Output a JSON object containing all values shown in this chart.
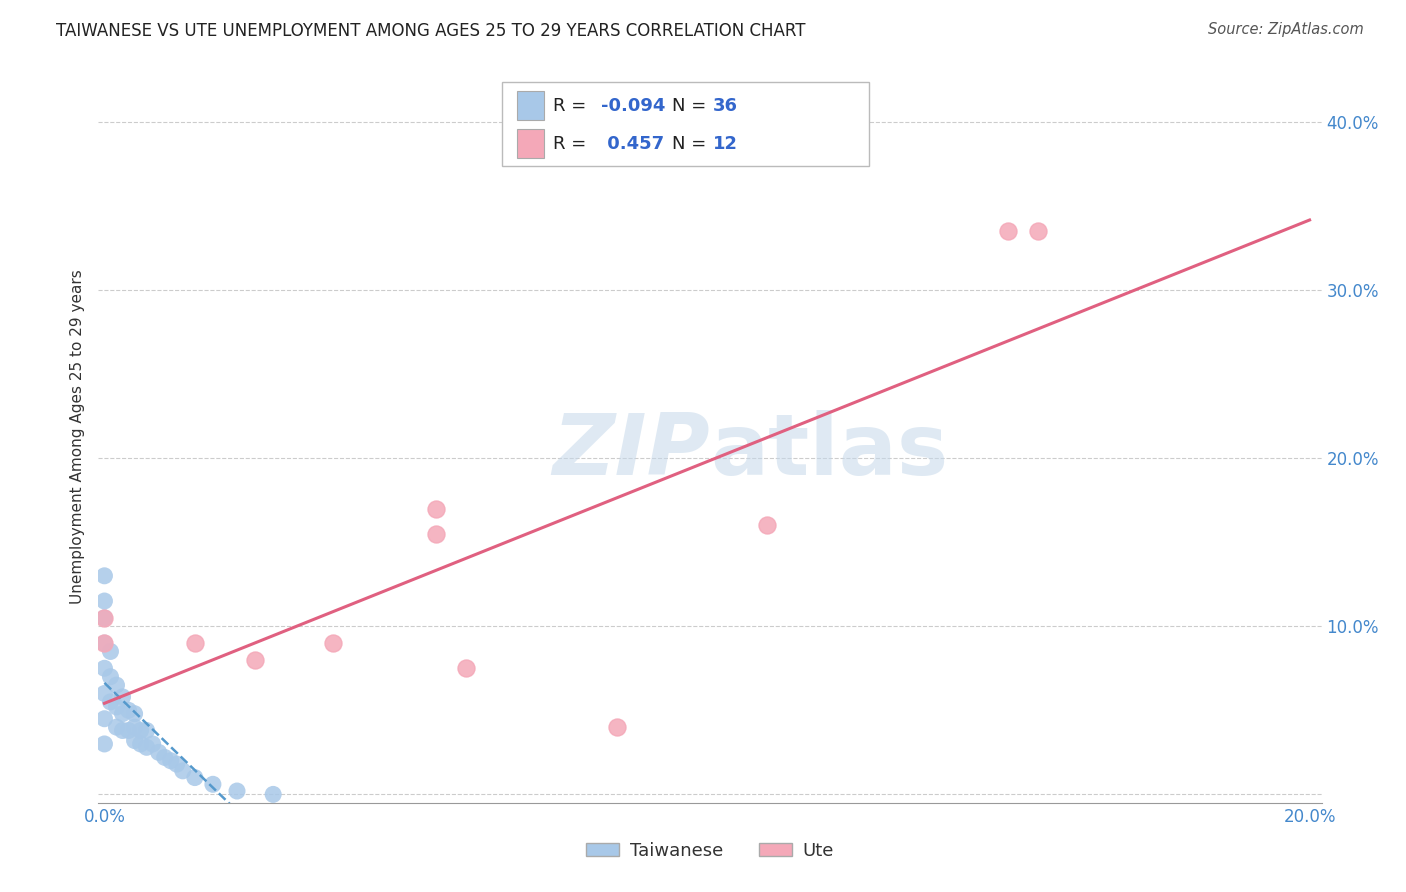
{
  "title": "TAIWANESE VS UTE UNEMPLOYMENT AMONG AGES 25 TO 29 YEARS CORRELATION CHART",
  "source": "Source: ZipAtlas.com",
  "ylabel": "Unemployment Among Ages 25 to 29 years",
  "xlim": [
    -0.001,
    0.202
  ],
  "ylim": [
    -0.005,
    0.43
  ],
  "xtick_vals": [
    0.0,
    0.05,
    0.1,
    0.15,
    0.2
  ],
  "ytick_vals": [
    0.0,
    0.1,
    0.2,
    0.3,
    0.4
  ],
  "xticklabels": [
    "0.0%",
    "",
    "",
    "",
    "20.0%"
  ],
  "yticklabels": [
    "",
    "10.0%",
    "20.0%",
    "30.0%",
    "40.0%"
  ],
  "taiwanese_x": [
    0.0,
    0.0,
    0.0,
    0.0,
    0.0,
    0.0,
    0.0,
    0.0,
    0.001,
    0.001,
    0.001,
    0.002,
    0.002,
    0.002,
    0.003,
    0.003,
    0.003,
    0.004,
    0.004,
    0.005,
    0.005,
    0.005,
    0.006,
    0.006,
    0.007,
    0.007,
    0.008,
    0.009,
    0.01,
    0.011,
    0.012,
    0.013,
    0.015,
    0.018,
    0.022,
    0.028
  ],
  "taiwanese_y": [
    0.13,
    0.115,
    0.105,
    0.09,
    0.075,
    0.06,
    0.045,
    0.03,
    0.085,
    0.07,
    0.055,
    0.065,
    0.052,
    0.04,
    0.058,
    0.048,
    0.038,
    0.05,
    0.038,
    0.048,
    0.04,
    0.032,
    0.038,
    0.03,
    0.038,
    0.028,
    0.03,
    0.025,
    0.022,
    0.02,
    0.018,
    0.014,
    0.01,
    0.006,
    0.002,
    0.0
  ],
  "ute_x": [
    0.0,
    0.0,
    0.015,
    0.025,
    0.038,
    0.055,
    0.055,
    0.085,
    0.11,
    0.15,
    0.155,
    0.06
  ],
  "ute_y": [
    0.105,
    0.09,
    0.09,
    0.08,
    0.09,
    0.17,
    0.155,
    0.04,
    0.16,
    0.335,
    0.335,
    0.075
  ],
  "taiwanese_scatter_color": "#a8c8e8",
  "ute_scatter_color": "#f4a8b8",
  "taiwanese_line_color": "#5599cc",
  "ute_line_color": "#e06080",
  "r_taiwanese": -0.094,
  "n_taiwanese": 36,
  "r_ute": 0.457,
  "n_ute": 12,
  "background_color": "#ffffff",
  "grid_color": "#cccccc"
}
